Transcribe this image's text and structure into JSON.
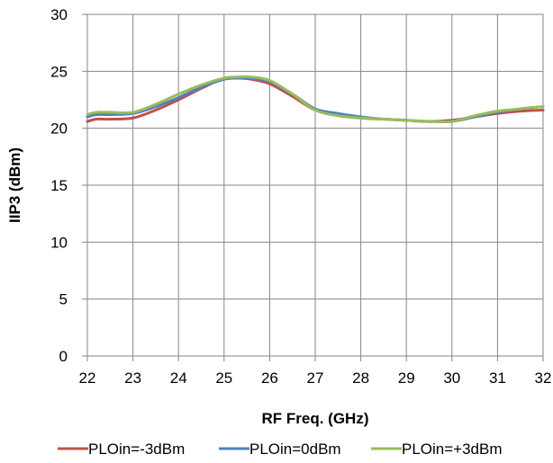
{
  "chart_data": {
    "type": "line",
    "title": "",
    "xlabel": "RF Freq. (GHz)",
    "ylabel": "IIP3 (dBm)",
    "xlim": [
      22,
      32
    ],
    "ylim": [
      0,
      30
    ],
    "x_ticks": [
      "22",
      "23",
      "24",
      "25",
      "26",
      "27",
      "28",
      "29",
      "30",
      "31",
      "32"
    ],
    "y_ticks": [
      "0",
      "5",
      "10",
      "15",
      "20",
      "25",
      "30"
    ],
    "grid": true,
    "legend_position": "bottom",
    "x": [
      22,
      22.2,
      22.5,
      23,
      23.5,
      24,
      24.5,
      25,
      25.3,
      25.6,
      26,
      26.5,
      27,
      27.5,
      28,
      28.5,
      29,
      29.5,
      30,
      30.5,
      31,
      31.5,
      32
    ],
    "series": [
      {
        "name": "PLOin=-3dBm",
        "color": "#C0504D",
        "values": [
          20.6,
          20.8,
          20.8,
          20.9,
          21.6,
          22.5,
          23.5,
          24.4,
          24.4,
          24.3,
          23.9,
          22.8,
          21.6,
          21.2,
          20.9,
          20.8,
          20.7,
          20.6,
          20.7,
          21.0,
          21.3,
          21.5,
          21.6
        ]
      },
      {
        "name": "PLOin=0dBm",
        "color": "#4F81BD",
        "values": [
          21.0,
          21.2,
          21.2,
          21.3,
          21.9,
          22.7,
          23.6,
          24.3,
          24.4,
          24.4,
          24.1,
          23.0,
          21.7,
          21.3,
          21.0,
          20.8,
          20.7,
          20.6,
          20.6,
          21.0,
          21.4,
          21.7,
          21.9
        ]
      },
      {
        "name": "PLOin=+3dBm",
        "color": "#9BBB59",
        "values": [
          21.2,
          21.4,
          21.4,
          21.4,
          22.1,
          23.0,
          23.8,
          24.4,
          24.5,
          24.5,
          24.2,
          23.0,
          21.6,
          21.1,
          20.9,
          20.8,
          20.7,
          20.6,
          20.6,
          21.1,
          21.5,
          21.7,
          21.9
        ]
      }
    ]
  }
}
